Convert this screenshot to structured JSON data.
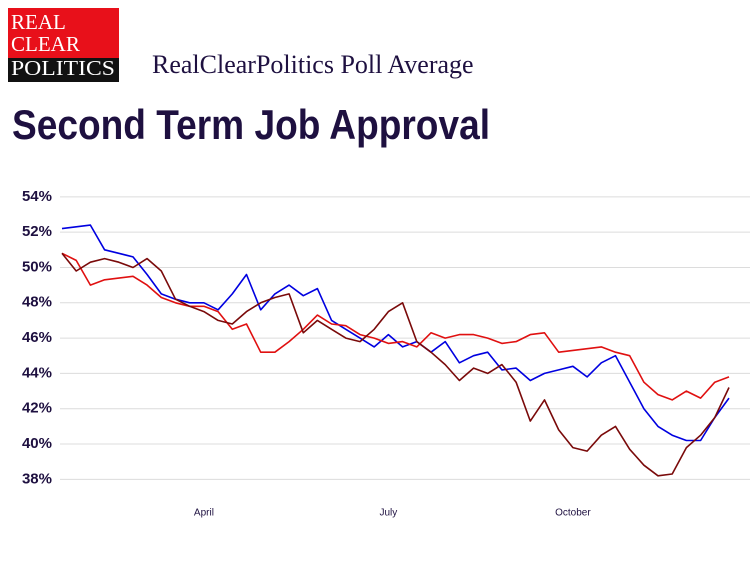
{
  "logo": [
    "REAL",
    "CLEAR",
    "POLITICS"
  ],
  "chart_data": {
    "type": "line",
    "title": "Second Term Job Approval",
    "subtitle": "RealClearPolitics Poll Average",
    "categories": [
      null,
      null,
      null,
      null,
      null,
      null,
      null,
      null,
      null,
      null,
      "April",
      null,
      null,
      null,
      null,
      null,
      null,
      null,
      null,
      null,
      null,
      null,
      null,
      "July",
      null,
      null,
      null,
      null,
      null,
      null,
      null,
      null,
      null,
      null,
      null,
      null,
      "October",
      null,
      null,
      null,
      null,
      null,
      null,
      null,
      null,
      null,
      null,
      null
    ],
    "series": [
      {
        "color": "#0000e0",
        "values": [
          52.2,
          52.3,
          52.4,
          51.0,
          50.8,
          50.6,
          49.6,
          48.5,
          48.2,
          48.0,
          48.0,
          47.6,
          48.5,
          49.6,
          47.6,
          48.5,
          49.0,
          48.4,
          48.8,
          47.0,
          46.5,
          46.0,
          45.5,
          46.2,
          45.5,
          45.8,
          45.2,
          45.8,
          44.6,
          45.0,
          45.2,
          44.2,
          44.3,
          43.6,
          44.0,
          44.2,
          44.4,
          43.8,
          44.6,
          45.0,
          43.5,
          42.0,
          41.0,
          40.5,
          40.2,
          40.2,
          41.5,
          42.6
        ]
      },
      {
        "color": "#e01010",
        "values": [
          50.8,
          50.4,
          49.0,
          49.3,
          49.4,
          49.5,
          49.0,
          48.3,
          48.0,
          47.8,
          47.8,
          47.5,
          46.5,
          46.8,
          45.2,
          45.2,
          45.8,
          46.5,
          47.3,
          46.8,
          46.7,
          46.2,
          46.0,
          45.7,
          45.8,
          45.5,
          46.3,
          46.0,
          46.2,
          46.2,
          46.0,
          45.7,
          45.8,
          46.2,
          46.3,
          45.2,
          45.3,
          45.4,
          45.5,
          45.2,
          45.0,
          43.5,
          42.8,
          42.5,
          43.0,
          42.6,
          43.5,
          43.8
        ]
      },
      {
        "color": "#7a0a0a",
        "values": [
          50.8,
          49.8,
          50.3,
          50.5,
          50.3,
          50.0,
          50.5,
          49.8,
          48.2,
          47.8,
          47.5,
          47.0,
          46.8,
          47.5,
          48.0,
          48.3,
          48.5,
          46.3,
          47.0,
          46.5,
          46.0,
          45.8,
          46.5,
          47.5,
          48.0,
          45.8,
          45.2,
          44.5,
          43.6,
          44.3,
          44.0,
          44.5,
          43.5,
          41.3,
          42.5,
          40.8,
          39.8,
          39.6,
          40.5,
          41.0,
          39.7,
          38.8,
          38.2,
          38.3,
          39.8,
          40.5,
          41.5,
          43.2
        ]
      }
    ],
    "ylim": [
      37,
      54.5
    ],
    "yticks": [
      {
        "value": 38,
        "label": "38%"
      },
      {
        "value": 40,
        "label": "40%"
      },
      {
        "value": 42,
        "label": "42%"
      },
      {
        "value": 44,
        "label": "44%"
      },
      {
        "value": 46,
        "label": "46%"
      },
      {
        "value": 48,
        "label": "48%"
      },
      {
        "value": 50,
        "label": "50%"
      },
      {
        "value": 52,
        "label": "52%"
      },
      {
        "value": 54,
        "label": "54%"
      }
    ],
    "grid": true
  }
}
